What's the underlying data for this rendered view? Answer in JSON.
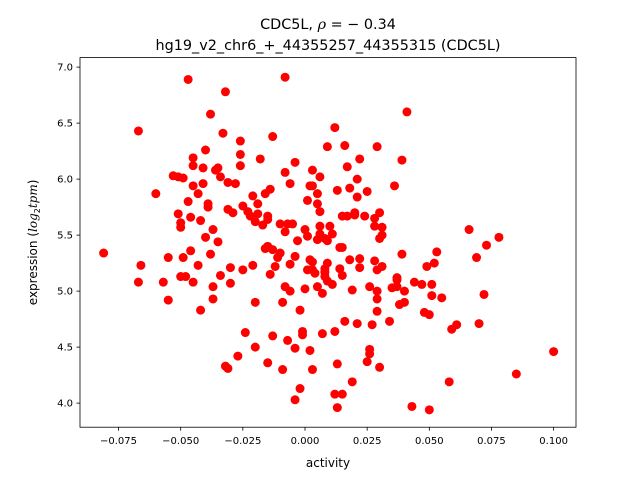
{
  "chart_data": {
    "type": "scatter",
    "title_line1_prefix": "CDC5L, ",
    "title_rho_symbol": "ρ",
    "title_rho_value": " = − 0.34",
    "title_line2": "hg19_v2_chr6_+_44355257_44355315 (CDC5L)",
    "xlabel": "activity",
    "ylabel_prefix": "expression (",
    "ylabel_math": "log",
    "ylabel_sub": "2",
    "ylabel_math2": "tpm",
    "ylabel_suffix": ")",
    "xlim": [
      -0.0905,
      0.109
    ],
    "ylim": [
      3.785,
      7.085
    ],
    "xticks": [
      -0.075,
      -0.05,
      -0.025,
      0.0,
      0.025,
      0.05,
      0.075,
      0.1
    ],
    "xtick_labels": [
      "−0.075",
      "−0.050",
      "−0.025",
      "0.000",
      "0.025",
      "0.050",
      "0.075",
      "0.100"
    ],
    "yticks": [
      4.0,
      4.5,
      5.0,
      5.5,
      6.0,
      6.5,
      7.0
    ],
    "ytick_labels": [
      "4.0",
      "4.5",
      "5.0",
      "5.5",
      "6.0",
      "6.5",
      "7.0"
    ],
    "marker_color": "#ff0000",
    "grid": false,
    "legend": "none",
    "points": [
      [
        -0.081,
        5.34
      ],
      [
        -0.067,
        6.43
      ],
      [
        -0.066,
        5.23
      ],
      [
        -0.067,
        5.08
      ],
      [
        -0.06,
        5.87
      ],
      [
        -0.057,
        5.08
      ],
      [
        -0.055,
        4.92
      ],
      [
        -0.055,
        5.3
      ],
      [
        -0.053,
        6.03
      ],
      [
        -0.051,
        6.02
      ],
      [
        -0.051,
        5.69
      ],
      [
        -0.05,
        5.13
      ],
      [
        -0.05,
        5.61
      ],
      [
        -0.05,
        5.57
      ],
      [
        -0.049,
        5.3
      ],
      [
        -0.049,
        6.01
      ],
      [
        -0.048,
        5.13
      ],
      [
        -0.047,
        6.89
      ],
      [
        -0.047,
        5.8
      ],
      [
        -0.046,
        5.36
      ],
      [
        -0.046,
        5.66
      ],
      [
        -0.045,
        6.12
      ],
      [
        -0.045,
        6.19
      ],
      [
        -0.045,
        5.94
      ],
      [
        -0.045,
        5.08
      ],
      [
        -0.043,
        5.23
      ],
      [
        -0.043,
        5.87
      ],
      [
        -0.042,
        5.63
      ],
      [
        -0.042,
        4.83
      ],
      [
        -0.041,
        6.1
      ],
      [
        -0.041,
        5.96
      ],
      [
        -0.04,
        5.48
      ],
      [
        -0.04,
        6.26
      ],
      [
        -0.039,
        5.78
      ],
      [
        -0.039,
        5.75
      ],
      [
        -0.038,
        6.58
      ],
      [
        -0.038,
        5.33
      ],
      [
        -0.037,
        5.04
      ],
      [
        -0.037,
        4.93
      ],
      [
        -0.037,
        5.55
      ],
      [
        -0.036,
        6.08
      ],
      [
        -0.035,
        6.1
      ],
      [
        -0.035,
        5.44
      ],
      [
        -0.034,
        6.02
      ],
      [
        -0.034,
        5.14
      ],
      [
        -0.033,
        6.41
      ],
      [
        -0.032,
        6.78
      ],
      [
        -0.032,
        4.33
      ],
      [
        -0.031,
        4.31
      ],
      [
        -0.031,
        5.97
      ],
      [
        -0.031,
        5.73
      ],
      [
        -0.03,
        5.21
      ],
      [
        -0.03,
        5.07
      ],
      [
        -0.029,
        5.7
      ],
      [
        -0.028,
        5.96
      ],
      [
        -0.027,
        4.42
      ],
      [
        -0.026,
        6.34
      ],
      [
        -0.026,
        6.22
      ],
      [
        -0.026,
        6.12
      ],
      [
        -0.025,
        5.19
      ],
      [
        -0.025,
        5.76
      ],
      [
        -0.024,
        4.63
      ],
      [
        -0.023,
        5.71
      ],
      [
        -0.022,
        5.67
      ],
      [
        -0.021,
        5.85
      ],
      [
        -0.021,
        5.23
      ],
      [
        -0.02,
        5.62
      ],
      [
        -0.02,
        4.5
      ],
      [
        -0.02,
        4.9
      ],
      [
        -0.019,
        5.69
      ],
      [
        -0.019,
        5.78
      ],
      [
        -0.018,
        6.18
      ],
      [
        -0.017,
        5.59
      ],
      [
        -0.016,
        5.87
      ],
      [
        -0.016,
        5.38
      ],
      [
        -0.015,
        5.4
      ],
      [
        -0.015,
        5.67
      ],
      [
        -0.015,
        5.64
      ],
      [
        -0.015,
        4.36
      ],
      [
        -0.014,
        5.15
      ],
      [
        -0.014,
        5.91
      ],
      [
        -0.013,
        6.38
      ],
      [
        -0.013,
        4.6
      ],
      [
        -0.013,
        5.37
      ],
      [
        -0.012,
        5.22
      ],
      [
        -0.011,
        5.3
      ],
      [
        -0.01,
        5.6
      ],
      [
        -0.01,
        5.34
      ],
      [
        -0.009,
        4.9
      ],
      [
        -0.009,
        4.3
      ],
      [
        -0.008,
        5.53
      ],
      [
        -0.008,
        6.06
      ],
      [
        -0.008,
        6.91
      ],
      [
        -0.008,
        5.04
      ],
      [
        -0.007,
        4.56
      ],
      [
        -0.007,
        5.6
      ],
      [
        -0.006,
        5.96
      ],
      [
        -0.006,
        5.0
      ],
      [
        -0.006,
        5.24
      ],
      [
        -0.005,
        5.6
      ],
      [
        -0.004,
        5.31
      ],
      [
        -0.004,
        6.15
      ],
      [
        -0.004,
        4.49
      ],
      [
        -0.004,
        4.03
      ],
      [
        -0.003,
        5.45
      ],
      [
        -0.002,
        4.83
      ],
      [
        -0.002,
        4.13
      ],
      [
        -0.001,
        4.64
      ],
      [
        -0.001,
        4.61
      ],
      [
        0.0,
        5.02
      ],
      [
        0.0,
        5.55
      ],
      [
        0.001,
        5.81
      ],
      [
        0.001,
        5.49
      ],
      [
        0.001,
        5.19
      ],
      [
        0.002,
        5.94
      ],
      [
        0.002,
        4.47
      ],
      [
        0.002,
        5.28
      ],
      [
        0.003,
        5.19
      ],
      [
        0.003,
        5.26
      ],
      [
        0.003,
        4.3
      ],
      [
        0.003,
        6.08
      ],
      [
        0.003,
        5.94
      ],
      [
        0.004,
        5.16
      ],
      [
        0.005,
        5.46
      ],
      [
        0.005,
        5.87
      ],
      [
        0.005,
        5.04
      ],
      [
        0.005,
        5.78
      ],
      [
        0.006,
        5.51
      ],
      [
        0.006,
        6.02
      ],
      [
        0.006,
        5.71
      ],
      [
        0.006,
        5.58
      ],
      [
        0.007,
        4.98
      ],
      [
        0.007,
        4.62
      ],
      [
        0.008,
        5.47
      ],
      [
        0.008,
        5.17
      ],
      [
        0.008,
        5.2
      ],
      [
        0.008,
        5.13
      ],
      [
        0.009,
        5.25
      ],
      [
        0.009,
        5.45
      ],
      [
        0.009,
        5.09
      ],
      [
        0.009,
        6.29
      ],
      [
        0.01,
        5.58
      ],
      [
        0.011,
        5.51
      ],
      [
        0.011,
        5.06
      ],
      [
        0.012,
        4.64
      ],
      [
        0.012,
        6.46
      ],
      [
        0.012,
        4.08
      ],
      [
        0.013,
        4.35
      ],
      [
        0.013,
        5.9
      ],
      [
        0.013,
        3.96
      ],
      [
        0.014,
        5.39
      ],
      [
        0.014,
        5.2
      ],
      [
        0.015,
        5.67
      ],
      [
        0.015,
        5.39
      ],
      [
        0.015,
        5.14
      ],
      [
        0.015,
        4.08
      ],
      [
        0.016,
        4.73
      ],
      [
        0.016,
        6.3
      ],
      [
        0.017,
        5.67
      ],
      [
        0.017,
        6.11
      ],
      [
        0.018,
        5.28
      ],
      [
        0.018,
        5.92
      ],
      [
        0.019,
        4.19
      ],
      [
        0.019,
        5.01
      ],
      [
        0.02,
        5.7
      ],
      [
        0.02,
        5.68
      ],
      [
        0.021,
        4.71
      ],
      [
        0.021,
        5.84
      ],
      [
        0.021,
        6.0
      ],
      [
        0.022,
        5.29
      ],
      [
        0.022,
        6.18
      ],
      [
        0.022,
        5.21
      ],
      [
        0.024,
        5.67
      ],
      [
        0.025,
        5.89
      ],
      [
        0.025,
        4.37
      ],
      [
        0.026,
        5.04
      ],
      [
        0.026,
        4.48
      ],
      [
        0.026,
        4.44
      ],
      [
        0.027,
        4.7
      ],
      [
        0.028,
        5.27
      ],
      [
        0.028,
        5.65
      ],
      [
        0.028,
        5.58
      ],
      [
        0.029,
        4.93
      ],
      [
        0.029,
        4.82
      ],
      [
        0.029,
        6.29
      ],
      [
        0.029,
        5.19
      ],
      [
        0.029,
        5.0
      ],
      [
        0.03,
        5.7
      ],
      [
        0.03,
        4.32
      ],
      [
        0.03,
        5.47
      ],
      [
        0.031,
        5.5
      ],
      [
        0.031,
        5.57
      ],
      [
        0.031,
        5.22
      ],
      [
        0.034,
        4.73
      ],
      [
        0.035,
        5.03
      ],
      [
        0.036,
        5.94
      ],
      [
        0.037,
        5.12
      ],
      [
        0.037,
        5.04
      ],
      [
        0.037,
        5.1
      ],
      [
        0.038,
        4.88
      ],
      [
        0.039,
        5.33
      ],
      [
        0.039,
        6.17
      ],
      [
        0.04,
        5.0
      ],
      [
        0.04,
        4.9
      ],
      [
        0.041,
        6.6
      ],
      [
        0.043,
        3.97
      ],
      [
        0.044,
        5.08
      ],
      [
        0.047,
        5.06
      ],
      [
        0.048,
        4.81
      ],
      [
        0.049,
        5.22
      ],
      [
        0.05,
        3.94
      ],
      [
        0.05,
        4.79
      ],
      [
        0.051,
        5.06
      ],
      [
        0.051,
        4.96
      ],
      [
        0.052,
        5.25
      ],
      [
        0.053,
        5.35
      ],
      [
        0.055,
        4.94
      ],
      [
        0.058,
        4.19
      ],
      [
        0.059,
        4.66
      ],
      [
        0.061,
        4.7
      ],
      [
        0.066,
        5.55
      ],
      [
        0.069,
        5.3
      ],
      [
        0.07,
        4.71
      ],
      [
        0.072,
        4.97
      ],
      [
        0.073,
        5.41
      ],
      [
        0.078,
        5.48
      ],
      [
        0.085,
        4.26
      ],
      [
        0.1,
        4.46
      ]
    ]
  }
}
